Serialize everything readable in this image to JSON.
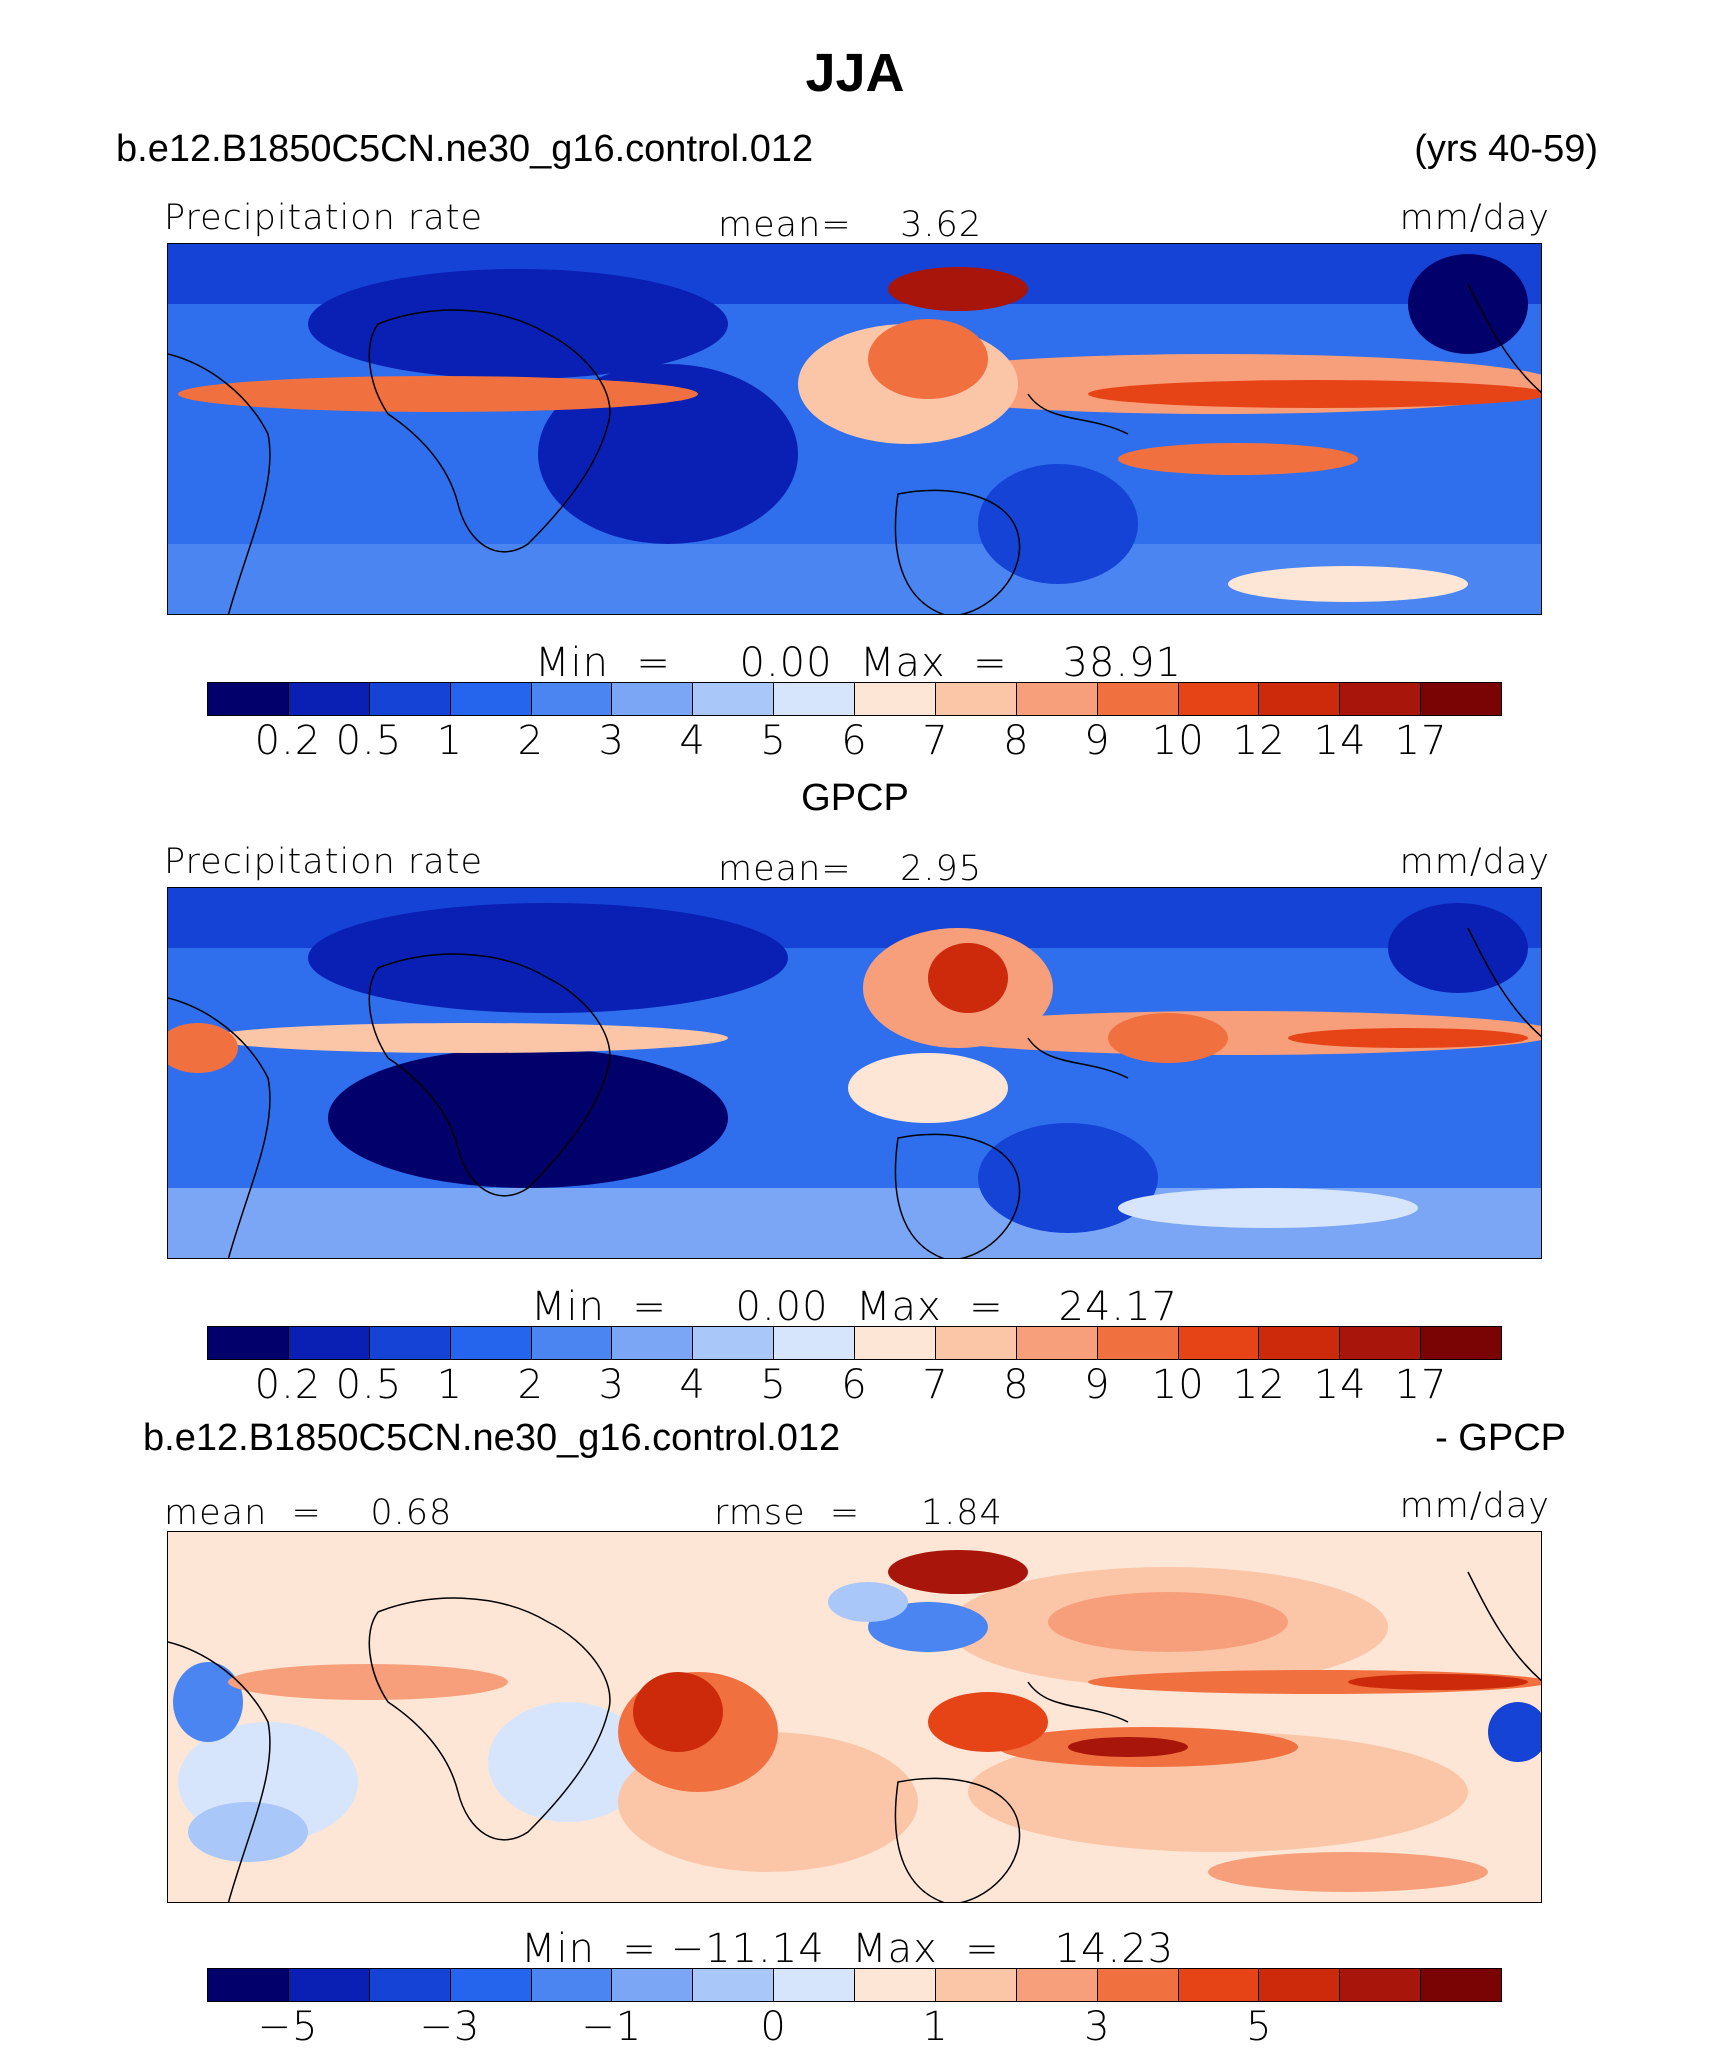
{
  "title": "JJA",
  "case_name": "b.e12.B1850C5CN.ne30_g16.control.012",
  "years": "(yrs 40-59)",
  "colors": [
    "#02006b",
    "#0a1fb3",
    "#1443d6",
    "#2565ee",
    "#4a85f2",
    "#7aa6f5",
    "#a9c7f8",
    "#d6e5fb",
    "#fde6d6",
    "#fbc6a8",
    "#f79f7b",
    "#f1703f",
    "#e64417",
    "#cc2a0a",
    "#a8150a",
    "#7a0303"
  ],
  "panels": [
    {
      "id": "model",
      "header": null,
      "left_label": "Precipitation rate",
      "center_label": "mean=    3.62",
      "right_label": "mm/day",
      "minmax": "Min  =     0.00  Max  =    38.91",
      "ticks": [
        "0.2",
        "0.5",
        "1",
        "2",
        "3",
        "4",
        "5",
        "6",
        "7",
        "8",
        "9",
        "10",
        "12",
        "14",
        "17"
      ],
      "field_value_range": [
        0,
        38.91
      ]
    },
    {
      "id": "obs",
      "header": "GPCP",
      "left_label": "Precipitation rate",
      "center_label": "mean=    2.95",
      "right_label": "mm/day",
      "minmax": "Min  =     0.00  Max  =    24.17",
      "ticks": [
        "0.2",
        "0.5",
        "1",
        "2",
        "3",
        "4",
        "5",
        "6",
        "7",
        "8",
        "9",
        "10",
        "12",
        "14",
        "17"
      ],
      "field_value_range": [
        0,
        24.17
      ]
    },
    {
      "id": "diff",
      "header_left": "b.e12.B1850C5CN.ne30_g16.control.012",
      "header_right": "- GPCP",
      "left_label": "mean  =    0.68",
      "center_label": "rmse  =     1.84",
      "right_label": "mm/day",
      "minmax": "Min  = −11.14  Max  =    14.23",
      "ticks": [
        "−5",
        "",
        "−3",
        "",
        "−1",
        "",
        "0",
        "",
        "1",
        "",
        "3",
        "",
        "5",
        "",
        ""
      ],
      "field_value_range": [
        -11.14,
        14.23
      ]
    }
  ]
}
